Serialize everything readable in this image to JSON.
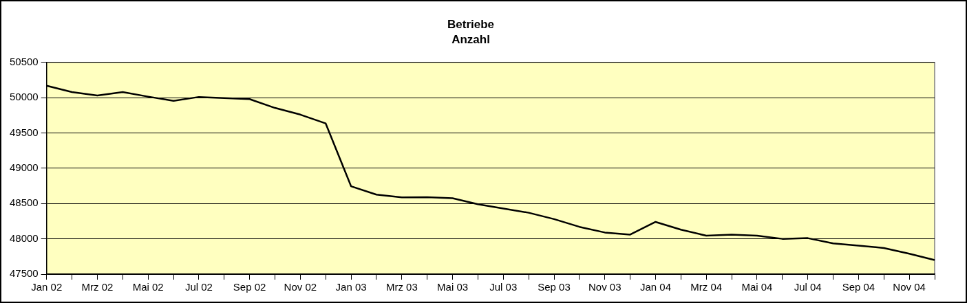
{
  "chart_data": {
    "type": "line",
    "title": "Betriebe",
    "subtitle": "Anzahl",
    "categories": [
      "Jan 02",
      null,
      "Mrz 02",
      null,
      "Mai 02",
      null,
      "Jul 02",
      null,
      "Sep 02",
      null,
      "Nov 02",
      null,
      "Jan 03",
      null,
      "Mrz 03",
      null,
      "Mai 03",
      null,
      "Jul 03",
      null,
      "Sep 03",
      null,
      "Nov 03",
      null,
      "Jan 04",
      null,
      "Mrz 04",
      null,
      "Mai 04",
      null,
      "Jul 04",
      null,
      "Sep 04",
      null,
      "Nov 04",
      null
    ],
    "series": [
      {
        "color": "#000000",
        "values": [
          50170,
          50080,
          50030,
          50080,
          50015,
          49955,
          50010,
          49995,
          49980,
          49855,
          49760,
          49635,
          48745,
          48627,
          48587,
          48590,
          48575,
          48490,
          48430,
          48370,
          48280,
          48170,
          48090,
          48060,
          48240,
          48130,
          48045,
          48060,
          48045,
          48000,
          48010,
          47935,
          47905,
          47870,
          47790,
          47700
        ]
      }
    ],
    "ylim": [
      47500,
      50500
    ],
    "yticks": [
      47500,
      48000,
      48500,
      49000,
      49500,
      50000,
      50500
    ],
    "grid": "y",
    "legend": false,
    "marker": "none",
    "line_style": "solid"
  }
}
